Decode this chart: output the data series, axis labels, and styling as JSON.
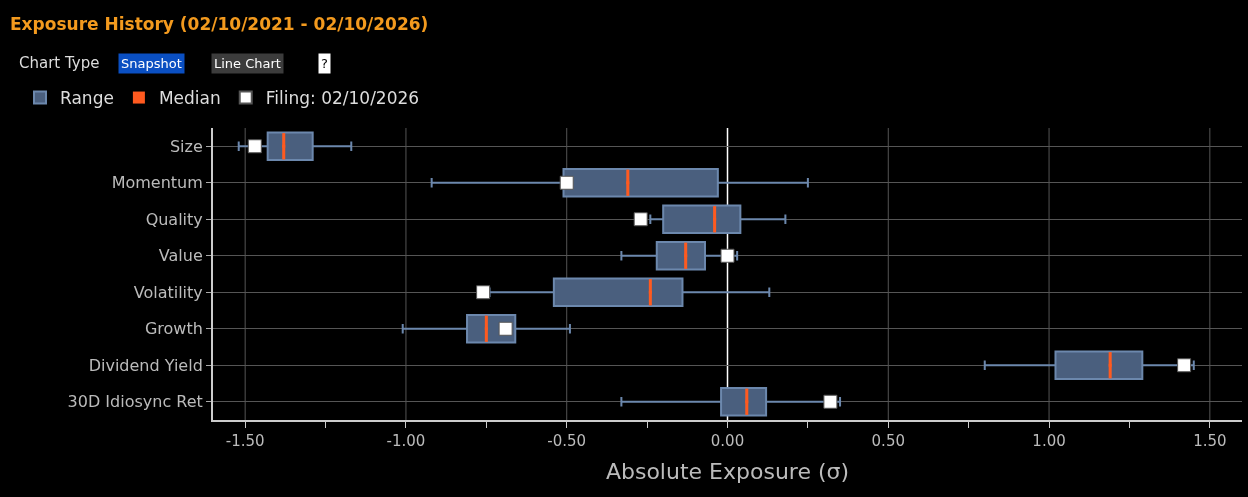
{
  "chart_data": {
    "type": "box",
    "orientation": "horizontal",
    "title": "Exposure History (02/10/2021 - 02/10/2026)",
    "xlabel": "Absolute Exposure (σ)",
    "annotations": [
      "Chart Type",
      "Snapshot",
      "Line Chart",
      "?"
    ],
    "categories": [
      "Size",
      "Momentum",
      "Quality",
      "Value",
      "Volatility",
      "Growth",
      "Dividend Yield",
      "30D Idiosync Ret"
    ],
    "series": [
      {
        "name": "Range",
        "color": "#4a5f7e",
        "boxes": [
          {
            "low": -1.52,
            "q1": -1.43,
            "median": -1.38,
            "q3": -1.29,
            "high": -1.17
          },
          {
            "low": -0.92,
            "q1": -0.51,
            "median": -0.31,
            "q3": -0.03,
            "high": 0.25
          },
          {
            "low": -0.24,
            "q1": -0.2,
            "median": -0.04,
            "q3": 0.04,
            "high": 0.18
          },
          {
            "low": -0.33,
            "q1": -0.22,
            "median": -0.13,
            "q3": -0.07,
            "high": 0.03
          },
          {
            "low": -0.74,
            "q1": -0.54,
            "median": -0.24,
            "q3": -0.14,
            "high": 0.13
          },
          {
            "low": -1.01,
            "q1": -0.81,
            "median": -0.75,
            "q3": -0.66,
            "high": -0.49
          },
          {
            "low": 0.8,
            "q1": 1.02,
            "median": 1.19,
            "q3": 1.29,
            "high": 1.45
          },
          {
            "low": -0.33,
            "q1": -0.02,
            "median": 0.06,
            "q3": 0.12,
            "high": 0.35
          }
        ]
      },
      {
        "name": "Median",
        "type": "scatter",
        "color": "#ff5a1f",
        "x": [
          "Size",
          "Momentum",
          "Quality",
          "Value",
          "Volatility",
          "Growth",
          "Dividend Yield",
          "30D Idiosync Ret"
        ],
        "values": [
          -1.38,
          -0.31,
          -0.04,
          -0.13,
          -0.24,
          -0.75,
          1.19,
          0.06
        ]
      },
      {
        "name": "Filing: 02/10/2026",
        "type": "scatter",
        "color": "#ffffff",
        "marker": "square",
        "x": [
          "Size",
          "Momentum",
          "Quality",
          "Value",
          "Volatility",
          "Growth",
          "Dividend Yield",
          "30D Idiosync Ret"
        ],
        "values": [
          -1.47,
          -0.5,
          -0.27,
          0.0,
          -0.76,
          -0.69,
          1.42,
          0.32
        ]
      }
    ],
    "xlim": [
      -1.6,
      1.6
    ],
    "xticks": [
      {
        "value": -1.5,
        "label": "-1.50"
      },
      {
        "value": -1.25,
        "label": null
      },
      {
        "value": -1.0,
        "label": "-1.00"
      },
      {
        "value": -0.75,
        "label": null
      },
      {
        "value": -0.5,
        "label": "-0.50"
      },
      {
        "value": -0.25,
        "label": null
      },
      {
        "value": 0,
        "label": "0.00"
      },
      {
        "value": 0.25,
        "label": null
      },
      {
        "value": 0.5,
        "label": "0.50"
      },
      {
        "value": 0.75,
        "label": null
      },
      {
        "value": 1.0,
        "label": "1.00"
      },
      {
        "value": 1.25,
        "label": null
      },
      {
        "value": 1.5,
        "label": "1.50"
      }
    ],
    "ref_lines": [
      {
        "axis": "x",
        "value": 0,
        "color": "#ffffff"
      }
    ],
    "grid": true,
    "legend": "top left"
  }
}
